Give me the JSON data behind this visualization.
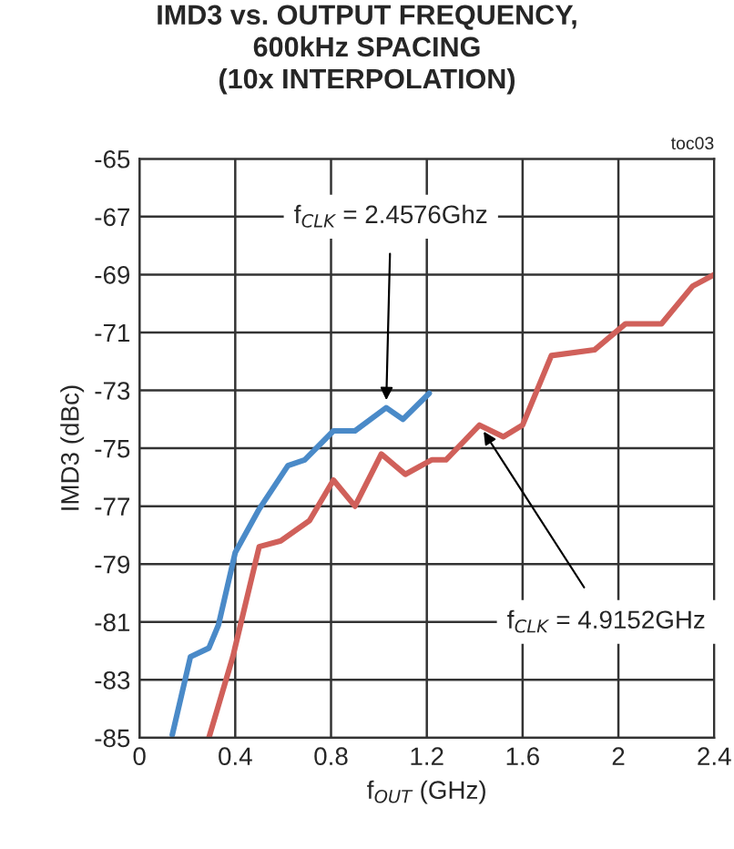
{
  "chart_data": {
    "type": "line",
    "title": "IMD3 vs. OUTPUT FREQUENCY,\n600kHz SPACING\n(10x INTERPOLATION)",
    "xlabel": "f$_{OUT}$ (GHz)",
    "ylabel": "IMD3 (dBc)",
    "xlim": [
      0,
      2.4
    ],
    "xticks": [
      0,
      0.4,
      0.8,
      1.2,
      1.6,
      2,
      2.4
    ],
    "ylim": [
      -85,
      -65
    ],
    "yticks": [
      -85,
      -83,
      -81,
      -79,
      -77,
      -75,
      -73,
      -71,
      -69,
      -67,
      -65
    ],
    "grid": true,
    "series": [
      {
        "color": "#4a8ac8",
        "x": [
          0.137,
          0.213,
          0.29,
          0.33,
          0.4,
          0.5,
          0.62,
          0.69,
          0.81,
          0.9,
          1.03,
          1.1,
          1.21
        ],
        "values": [
          -84.9,
          -82.2,
          -81.9,
          -81.1,
          -78.6,
          -77.1,
          -75.6,
          -75.4,
          -74.4,
          -74.4,
          -73.6,
          -74.0,
          -73.1
        ]
      },
      {
        "color": "#d0605a",
        "x": [
          0.29,
          0.39,
          0.5,
          0.59,
          0.71,
          0.81,
          0.9,
          1.01,
          1.11,
          1.22,
          1.28,
          1.42,
          1.52,
          1.6,
          1.72,
          1.9,
          2.03,
          2.18,
          2.31,
          2.4
        ],
        "values": [
          -85,
          -82.2,
          -78.4,
          -78.2,
          -77.5,
          -76.1,
          -77.0,
          -75.2,
          -75.9,
          -75.4,
          -75.4,
          -74.2,
          -74.6,
          -74.2,
          -71.8,
          -71.6,
          -70.7,
          -70.7,
          -69.4,
          -69.0
        ]
      }
    ],
    "annotations": [
      {
        "text": "f$_{CLK}$ = 2.4576Ghz",
        "x": 1.03,
        "y": -73.6
      },
      {
        "text": "f$_{CLK}$ = 4.9152GHz",
        "x": 1.42,
        "y": -74.2
      },
      "toc03"
    ]
  }
}
